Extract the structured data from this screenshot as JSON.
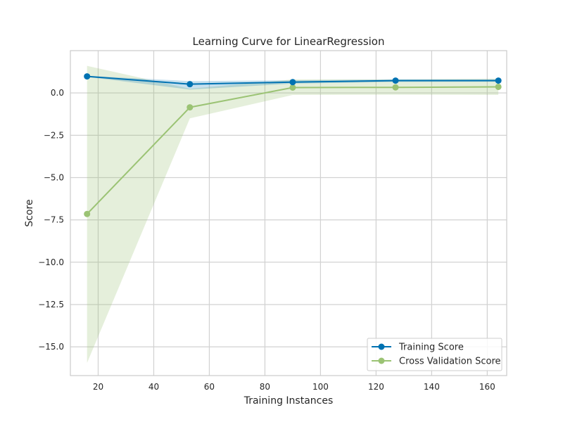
{
  "chart_data": {
    "type": "line",
    "title": "Learning Curve for LinearRegression",
    "xlabel": "Training Instances",
    "ylabel": "Score",
    "xlim": [
      10,
      167
    ],
    "ylim": [
      -16.7,
      2.5
    ],
    "xticks": [
      20,
      40,
      60,
      80,
      100,
      120,
      140,
      160
    ],
    "xtick_labels": [
      "20",
      "40",
      "60",
      "80",
      "100",
      "120",
      "140",
      "160"
    ],
    "yticks": [
      0.0,
      -2.5,
      -5.0,
      -7.5,
      -10.0,
      -12.5,
      -15.0
    ],
    "ytick_labels": [
      "0.0",
      "−2.5",
      "−5.0",
      "−7.5",
      "−10.0",
      "−12.5",
      "−15.0"
    ],
    "grid": true,
    "legend_position": "bottom-right",
    "x": [
      16,
      53,
      90,
      127,
      164
    ],
    "series": [
      {
        "name": "Training Score",
        "color": "#0072b2",
        "values": [
          0.98,
          0.52,
          0.64,
          0.73,
          0.73
        ],
        "band_lower": [
          0.95,
          0.2,
          0.55,
          0.65,
          0.66
        ],
        "band_upper": [
          1.01,
          0.7,
          0.75,
          0.8,
          0.8
        ]
      },
      {
        "name": "Cross Validation Score",
        "color": "#9bc374",
        "values": [
          -7.15,
          -0.85,
          0.32,
          0.33,
          0.36
        ],
        "band_lower": [
          -15.95,
          -1.5,
          -0.12,
          -0.1,
          -0.12
        ],
        "band_upper": [
          1.6,
          0.25,
          0.8,
          0.8,
          0.85
        ]
      }
    ]
  }
}
